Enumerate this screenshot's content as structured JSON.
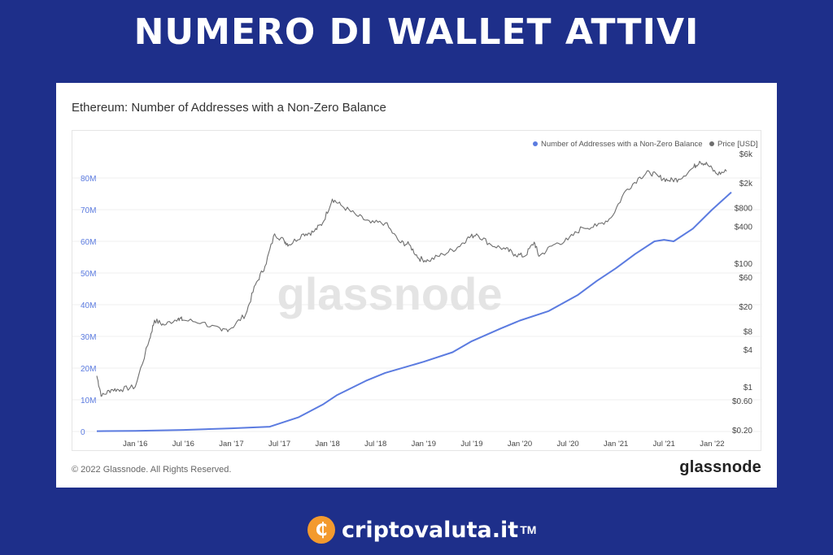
{
  "headline": "NUMERO DI WALLET ATTIVI",
  "card": {
    "title": "Ethereum: Number of Addresses with a Non-Zero Balance",
    "copyright": "© 2022 Glassnode. All Rights Reserved.",
    "brand": "glassnode",
    "watermark": "glassnode"
  },
  "footer": {
    "brand": "criptovaluta.it",
    "trademark": "TM",
    "icon": "bitcoin-coin-icon"
  },
  "colors": {
    "background": "#1e2f8a",
    "addresses_series": "#5b7be0",
    "price_series": "#6e6e6e",
    "coin": "#f39a2e"
  },
  "chart_data": {
    "type": "line",
    "title": "Ethereum: Number of Addresses with a Non-Zero Balance",
    "x_ticks": [
      "Jan '16",
      "Jul '16",
      "Jan '17",
      "Jul '17",
      "Jan '18",
      "Jul '18",
      "Jan '19",
      "Jul '19",
      "Jan '20",
      "Jul '20",
      "Jan '21",
      "Jul '21",
      "Jan '22"
    ],
    "x_range": [
      2015.6,
      2022.2
    ],
    "grid": true,
    "legend_placement": "top-right",
    "left_axis": {
      "ticks": [
        "0",
        "10M",
        "20M",
        "30M",
        "40M",
        "50M",
        "60M",
        "70M",
        "80M"
      ],
      "tick_values": [
        0,
        10,
        20,
        30,
        40,
        50,
        60,
        70,
        80
      ],
      "range": [
        0,
        80
      ],
      "unit_scale": "millions"
    },
    "right_axis": {
      "scale": "log",
      "ticks": [
        "$0.20",
        "$0.60",
        "$1",
        "$4",
        "$8",
        "$20",
        "$60",
        "$100",
        "$400",
        "$800",
        "$2k",
        "$6k"
      ],
      "tick_values": [
        0.2,
        0.6,
        1,
        4,
        8,
        20,
        60,
        100,
        400,
        800,
        2000,
        6000
      ],
      "range": [
        0.2,
        6000
      ]
    },
    "series": [
      {
        "name": "Number of Addresses with a Non-Zero Balance",
        "axis": "left",
        "x": [
          2015.6,
          2016.0,
          2016.5,
          2017.0,
          2017.4,
          2017.7,
          2017.95,
          2018.1,
          2018.4,
          2018.6,
          2019.0,
          2019.3,
          2019.5,
          2019.8,
          2020.0,
          2020.3,
          2020.6,
          2020.8,
          2021.0,
          2021.2,
          2021.4,
          2021.5,
          2021.6,
          2021.8,
          2022.0,
          2022.2
        ],
        "values": [
          0.1,
          0.2,
          0.5,
          1.0,
          1.5,
          4.5,
          8.5,
          11.5,
          16.0,
          18.5,
          22.0,
          25.0,
          28.5,
          32.5,
          35.0,
          38.0,
          43.0,
          47.5,
          51.5,
          56.0,
          60.0,
          60.5,
          60.0,
          64.0,
          70.0,
          75.5
        ]
      },
      {
        "name": "Price [USD]",
        "axis": "right",
        "x": [
          2015.6,
          2015.65,
          2015.75,
          2015.85,
          2016.0,
          2016.15,
          2016.2,
          2016.3,
          2016.45,
          2016.5,
          2016.7,
          2016.9,
          2017.0,
          2017.15,
          2017.25,
          2017.35,
          2017.45,
          2017.55,
          2017.6,
          2017.75,
          2017.85,
          2017.95,
          2018.05,
          2018.15,
          2018.3,
          2018.45,
          2018.6,
          2018.75,
          2018.85,
          2018.95,
          2019.05,
          2019.2,
          2019.35,
          2019.45,
          2019.55,
          2019.7,
          2019.85,
          2019.95,
          2020.05,
          2020.15,
          2020.2,
          2020.35,
          2020.5,
          2020.65,
          2020.8,
          2020.95,
          2021.1,
          2021.25,
          2021.35,
          2021.45,
          2021.55,
          2021.65,
          2021.8,
          2021.87,
          2021.95,
          2022.05,
          2022.15
        ],
        "values": [
          1.5,
          0.7,
          0.9,
          0.9,
          1.0,
          6.0,
          12.0,
          10.0,
          13.0,
          12.0,
          11.0,
          8.0,
          9.0,
          15.0,
          45.0,
          90.0,
          300.0,
          230.0,
          200.0,
          300.0,
          320.0,
          450.0,
          1100.0,
          850.0,
          600.0,
          450.0,
          450.0,
          220.0,
          200.0,
          120.0,
          110.0,
          140.0,
          180.0,
          250.0,
          300.0,
          200.0,
          170.0,
          140.0,
          130.0,
          220.0,
          130.0,
          200.0,
          240.0,
          380.0,
          400.0,
          550.0,
          1500.0,
          2500.0,
          3000.0,
          2500.0,
          2200.0,
          2300.0,
          3500.0,
          4500.0,
          4000.0,
          2800.0,
          3100.0
        ]
      }
    ]
  }
}
